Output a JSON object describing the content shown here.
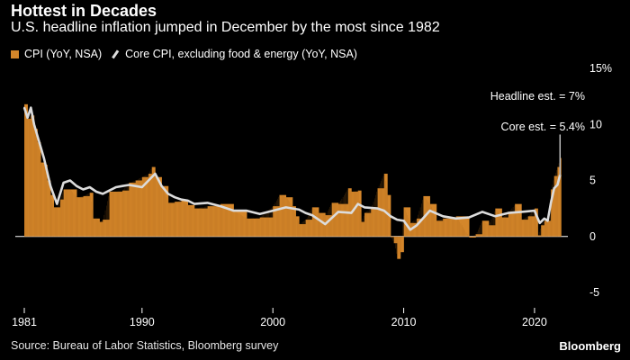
{
  "title": "Hottest in Decades",
  "subtitle": "U.S. headline inflation jumped in December by the most since 1982",
  "legend": {
    "cpi": "CPI (YoY, NSA)",
    "core": "Core CPI, excluding food & energy (YoY, NSA)"
  },
  "source": "Source: Bureau of Labor Statistics, Bloomberg survey",
  "brand": "Bloomberg",
  "colors": {
    "cpi": "#d4862a",
    "core": "#dcdcdc",
    "background": "#000000",
    "text": "#ffffff"
  },
  "chart_data": {
    "type": "bar",
    "title": "Hottest in Decades",
    "xlabel": "",
    "ylabel": "",
    "xlim": [
      1981.0,
      2022.0
    ],
    "ylim": [
      -5,
      15
    ],
    "x_ticks": [
      {
        "value": 1981,
        "label": "1981"
      },
      {
        "value": 1990,
        "label": "1990"
      },
      {
        "value": 2000,
        "label": "2000"
      },
      {
        "value": 2010,
        "label": "2010"
      },
      {
        "value": 2020,
        "label": "2020"
      }
    ],
    "y_ticks": [
      {
        "value": 15,
        "label": "15%"
      },
      {
        "value": 10,
        "label": "10"
      },
      {
        "value": 5,
        "label": "5"
      },
      {
        "value": 0,
        "label": "0"
      },
      {
        "value": -5,
        "label": "-5"
      }
    ],
    "annotations": [
      {
        "label": "Headline est. = 7%",
        "year": 2021.95,
        "value": 7
      },
      {
        "label": "Core est. = 5.4%",
        "year": 2021.95,
        "value": 5.4
      }
    ],
    "estimate_line": {
      "year": 2021.95,
      "from": 5.4,
      "to": 9.1
    },
    "series": [
      {
        "name": "CPI (YoY, NSA)",
        "type": "bar",
        "x": [
          1981.0,
          1981.25,
          1981.5,
          1981.75,
          1982.0,
          1982.25,
          1982.5,
          1982.75,
          1983.0,
          1983.25,
          1983.5,
          1983.75,
          1984.0,
          1984.5,
          1985.0,
          1985.5,
          1986.0,
          1986.25,
          1986.5,
          1986.75,
          1987.0,
          1987.5,
          1988.0,
          1988.5,
          1989.0,
          1989.5,
          1990.0,
          1990.5,
          1990.75,
          1991.0,
          1991.5,
          1992.0,
          1992.5,
          1993.0,
          1993.5,
          1994.0,
          1995.0,
          1996.0,
          1997.0,
          1998.0,
          1999.0,
          2000.0,
          2000.5,
          2001.0,
          2001.5,
          2001.75,
          2002.0,
          2002.5,
          2003.0,
          2003.5,
          2004.0,
          2004.5,
          2005.0,
          2005.75,
          2006.0,
          2006.5,
          2006.75,
          2007.0,
          2007.5,
          2008.0,
          2008.5,
          2008.75,
          2009.0,
          2009.25,
          2009.5,
          2009.75,
          2010.0,
          2010.5,
          2011.0,
          2011.5,
          2012.0,
          2012.5,
          2013.0,
          2014.0,
          2015.0,
          2015.5,
          2016.0,
          2016.5,
          2017.0,
          2017.5,
          2018.0,
          2018.5,
          2019.0,
          2019.5,
          2020.0,
          2020.25,
          2020.5,
          2020.75,
          2021.0,
          2021.25,
          2021.5,
          2021.75,
          2021.95
        ],
        "values": [
          11.8,
          10.5,
          10.8,
          9.6,
          8.4,
          6.6,
          6.4,
          5.0,
          3.7,
          2.6,
          2.6,
          3.3,
          4.2,
          4.2,
          3.5,
          3.6,
          3.9,
          1.6,
          1.6,
          1.3,
          1.5,
          4.0,
          4.0,
          4.1,
          4.8,
          5.0,
          5.3,
          5.6,
          6.2,
          5.3,
          4.5,
          3.0,
          3.1,
          3.2,
          2.8,
          2.5,
          2.7,
          2.9,
          2.3,
          1.6,
          1.7,
          2.7,
          3.7,
          3.5,
          2.7,
          1.8,
          1.1,
          1.5,
          2.6,
          2.1,
          1.9,
          3.0,
          2.9,
          4.3,
          4.0,
          4.1,
          1.3,
          2.1,
          2.5,
          4.3,
          5.6,
          3.7,
          0.0,
          -0.6,
          -2.0,
          -1.4,
          2.6,
          1.2,
          1.6,
          3.6,
          2.9,
          1.4,
          1.6,
          1.8,
          -0.1,
          0.2,
          1.4,
          1.0,
          2.5,
          1.7,
          2.1,
          2.9,
          1.5,
          1.8,
          2.5,
          0.1,
          1.0,
          1.4,
          1.4,
          4.2,
          5.4,
          6.2,
          7.0
        ]
      },
      {
        "name": "Core CPI, excluding food & energy (YoY, NSA)",
        "type": "line",
        "x": [
          1981.0,
          1981.25,
          1981.5,
          1981.75,
          1982.0,
          1982.5,
          1983.0,
          1983.5,
          1984.0,
          1984.5,
          1985.0,
          1985.5,
          1986.0,
          1986.5,
          1987.0,
          1987.5,
          1988.0,
          1988.5,
          1989.0,
          1989.5,
          1990.0,
          1990.5,
          1991.0,
          1991.5,
          1992.0,
          1992.5,
          1993.0,
          1993.5,
          1994.0,
          1995.0,
          1996.0,
          1997.0,
          1998.0,
          1999.0,
          2000.0,
          2001.0,
          2002.0,
          2002.5,
          2003.0,
          2003.5,
          2004.0,
          2005.0,
          2006.0,
          2006.5,
          2007.0,
          2008.0,
          2008.5,
          2009.0,
          2009.5,
          2010.0,
          2010.5,
          2011.0,
          2012.0,
          2013.0,
          2014.0,
          2015.0,
          2016.0,
          2017.0,
          2018.0,
          2019.0,
          2020.0,
          2020.4,
          2020.75,
          2021.0,
          2021.25,
          2021.5,
          2021.75,
          2021.95
        ],
        "values": [
          11.5,
          10.6,
          11.5,
          10.0,
          9.0,
          7.0,
          4.5,
          2.9,
          4.8,
          5.0,
          4.5,
          4.2,
          4.4,
          4.0,
          3.8,
          4.1,
          4.4,
          4.5,
          4.6,
          4.5,
          4.4,
          5.0,
          5.6,
          4.5,
          3.8,
          3.5,
          3.3,
          3.2,
          2.9,
          3.0,
          2.7,
          2.3,
          2.3,
          2.0,
          2.3,
          2.6,
          2.4,
          2.1,
          1.9,
          1.5,
          1.1,
          2.2,
          2.1,
          2.9,
          2.6,
          2.5,
          2.3,
          1.8,
          1.5,
          1.4,
          0.6,
          1.0,
          2.3,
          1.8,
          1.6,
          1.7,
          2.2,
          1.8,
          2.1,
          2.2,
          2.3,
          1.2,
          1.6,
          1.4,
          3.0,
          4.3,
          4.6,
          5.5
        ]
      }
    ]
  }
}
